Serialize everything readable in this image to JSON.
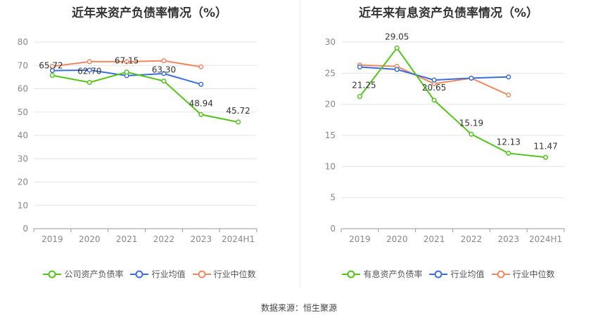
{
  "source": "数据来源：恒生聚源",
  "legend_colors": [
    "#52c41a",
    "#3a6fd8",
    "#f08860"
  ],
  "chart_data": [
    {
      "type": "line",
      "title": "近年来资产负债率情况（%）",
      "categories": [
        "2019",
        "2020",
        "2021",
        "2022",
        "2023",
        "2024H1"
      ],
      "ylim": [
        0,
        80
      ],
      "yticks": [
        0,
        10,
        20,
        30,
        40,
        50,
        60,
        70,
        80
      ],
      "grid": true,
      "legend_position": "bottom",
      "series": [
        {
          "name": "公司资产负债率",
          "color": "#52c41a",
          "values": [
            65.72,
            62.7,
            67.15,
            63.3,
            48.94,
            45.72
          ],
          "labels": [
            "65.72",
            "62.70",
            "67.15",
            "63.30",
            "48.94",
            "45.72"
          ]
        },
        {
          "name": "行业均值",
          "color": "#3a6fd8",
          "values": [
            67.8,
            68.0,
            65.6,
            66.5,
            61.9,
            null
          ]
        },
        {
          "name": "行业中位数",
          "color": "#f08860",
          "values": [
            69.6,
            71.6,
            71.6,
            72.0,
            69.4,
            null
          ]
        }
      ]
    },
    {
      "type": "line",
      "title": "近年来有息资产负债率情况（%）",
      "categories": [
        "2019",
        "2020",
        "2021",
        "2022",
        "2023",
        "2024H1"
      ],
      "ylim": [
        0,
        30
      ],
      "yticks": [
        0,
        5,
        10,
        15,
        20,
        25,
        30
      ],
      "grid": true,
      "legend_position": "bottom",
      "series": [
        {
          "name": "有息资产负债率",
          "color": "#52c41a",
          "values": [
            21.25,
            29.05,
            20.65,
            15.19,
            12.13,
            11.47
          ],
          "labels": [
            "21.25",
            "29.05",
            "20.65",
            "15.19",
            "12.13",
            "11.47"
          ]
        },
        {
          "name": "行业均值",
          "color": "#3a6fd8",
          "values": [
            26.0,
            25.6,
            23.9,
            24.2,
            24.4,
            null
          ]
        },
        {
          "name": "行业中位数",
          "color": "#f08860",
          "values": [
            26.3,
            26.1,
            23.3,
            24.2,
            21.5,
            null
          ]
        }
      ]
    }
  ]
}
